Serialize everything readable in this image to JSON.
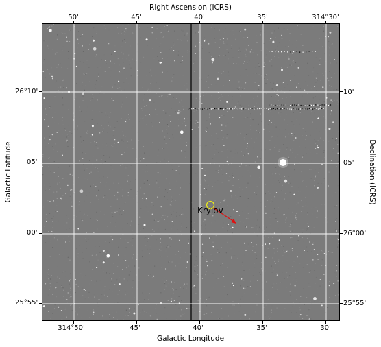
{
  "title_top": "Right Ascension (ICRS)",
  "title_bottom": "Galactic Longitude",
  "title_left": "Galactic Latitude",
  "title_right": "Declination (ICRS)",
  "top_ticks": [
    "50'",
    "45'",
    "40'",
    "35'",
    "314°30'"
  ],
  "bottom_ticks": [
    "314°50'",
    "45'",
    "40'",
    "35'",
    "30'"
  ],
  "left_ticks": [
    "26°10'",
    "05'",
    "00'",
    "25°55'"
  ],
  "right_ticks": [
    "10'",
    "05'",
    "26°00'",
    "25°55'"
  ],
  "target": {
    "name": "Krylov",
    "marker_color": "#e8e81a",
    "arrow_color": "#e01010"
  },
  "colors": {
    "sky_background": "#7b7b7b",
    "grid": "#ffffff"
  }
}
